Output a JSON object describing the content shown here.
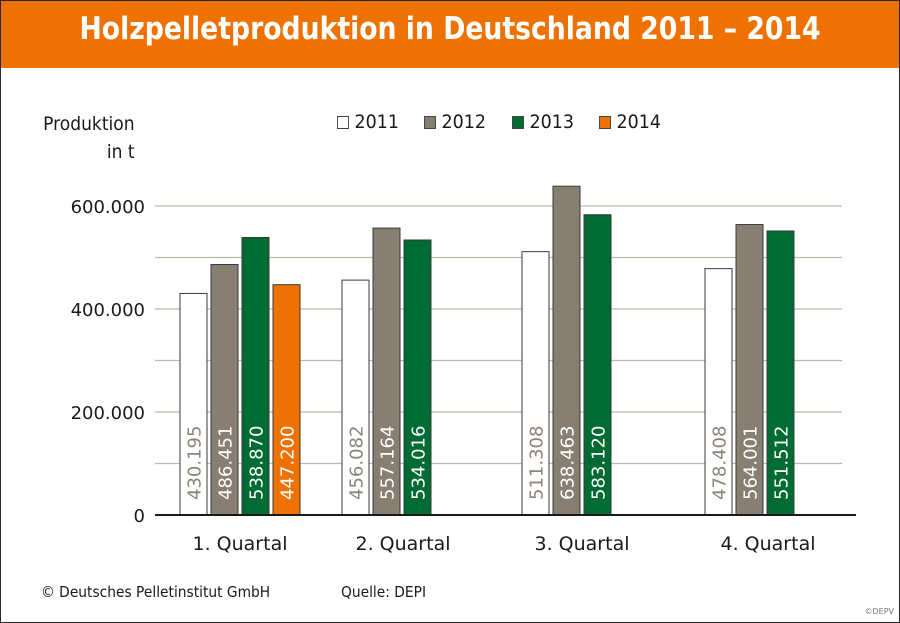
{
  "title": "Holzpelletproduktion in Deutschland 2011 – 2014",
  "footer": {
    "copyright": "© Deutsches Pelletinstitut GmbH",
    "source": "Quelle: DEPI",
    "watermark": "©DEPV"
  },
  "chart_data": {
    "type": "bar",
    "title": "Holzpelletproduktion in Deutschland 2011 – 2014",
    "xlabel": "",
    "ylabel_lines": [
      "Produktion",
      "in t"
    ],
    "ylim": [
      0,
      600000
    ],
    "yticks": [
      0,
      200000,
      400000,
      600000
    ],
    "ytick_labels": [
      "0",
      "200.000",
      "400.000",
      "600.000"
    ],
    "grid_step": 100000,
    "grid": true,
    "legend_position": "top-center",
    "categories": [
      "1. Quartal",
      "2. Quartal",
      "3. Quartal",
      "4. Quartal"
    ],
    "series": [
      {
        "name": "2011",
        "color": "#ffffff",
        "label_color": "#8a8378",
        "values": [
          430195,
          456082,
          511308,
          478408
        ],
        "labels": [
          "430.195",
          "456.082",
          "511.308",
          "478.408"
        ]
      },
      {
        "name": "2012",
        "color": "#878072",
        "label_color": "#ffffff",
        "values": [
          486451,
          557164,
          638463,
          564001
        ],
        "labels": [
          "486.451",
          "557.164",
          "638.463",
          "564.001"
        ]
      },
      {
        "name": "2013",
        "color": "#006b33",
        "label_color": "#ffffff",
        "values": [
          538870,
          534016,
          583120,
          551512
        ],
        "labels": [
          "538.870",
          "534.016",
          "583.120",
          "551.512"
        ]
      },
      {
        "name": "2014",
        "color": "#ee7203",
        "label_color": "#ffffff",
        "values": [
          447200,
          null,
          null,
          null
        ],
        "labels": [
          "447.200",
          null,
          null,
          null
        ]
      }
    ]
  }
}
